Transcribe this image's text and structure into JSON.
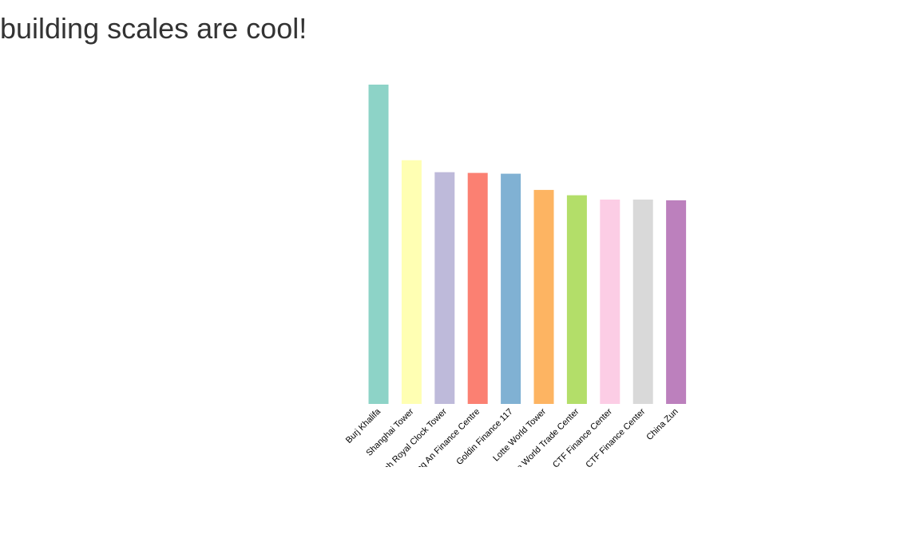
{
  "page": {
    "title": "building scales are cool!"
  },
  "chart_data": {
    "type": "bar",
    "title": "",
    "xlabel": "",
    "ylabel": "",
    "categories": [
      "Burj Khalifa",
      "Shanghai Tower",
      "Makkah Royal Clock Tower",
      "Ping An Finance Centre",
      "Goldin Finance 117",
      "Lotte World Tower",
      "One World Trade Center",
      "Guangzhou CTF Finance Center",
      "Tianjin CTF Finance Center",
      "China Zun"
    ],
    "values": [
      828,
      632,
      601,
      599,
      597,
      555,
      541,
      530,
      530,
      528
    ],
    "colors": [
      "#8dd3c7",
      "#ffffb3",
      "#bebada",
      "#fb8072",
      "#80b1d3",
      "#fdb462",
      "#b3de69",
      "#fccde5",
      "#d9d9d9",
      "#bc80bd"
    ],
    "ylim": [
      0,
      828
    ],
    "grid": false,
    "axes_visible": false
  }
}
